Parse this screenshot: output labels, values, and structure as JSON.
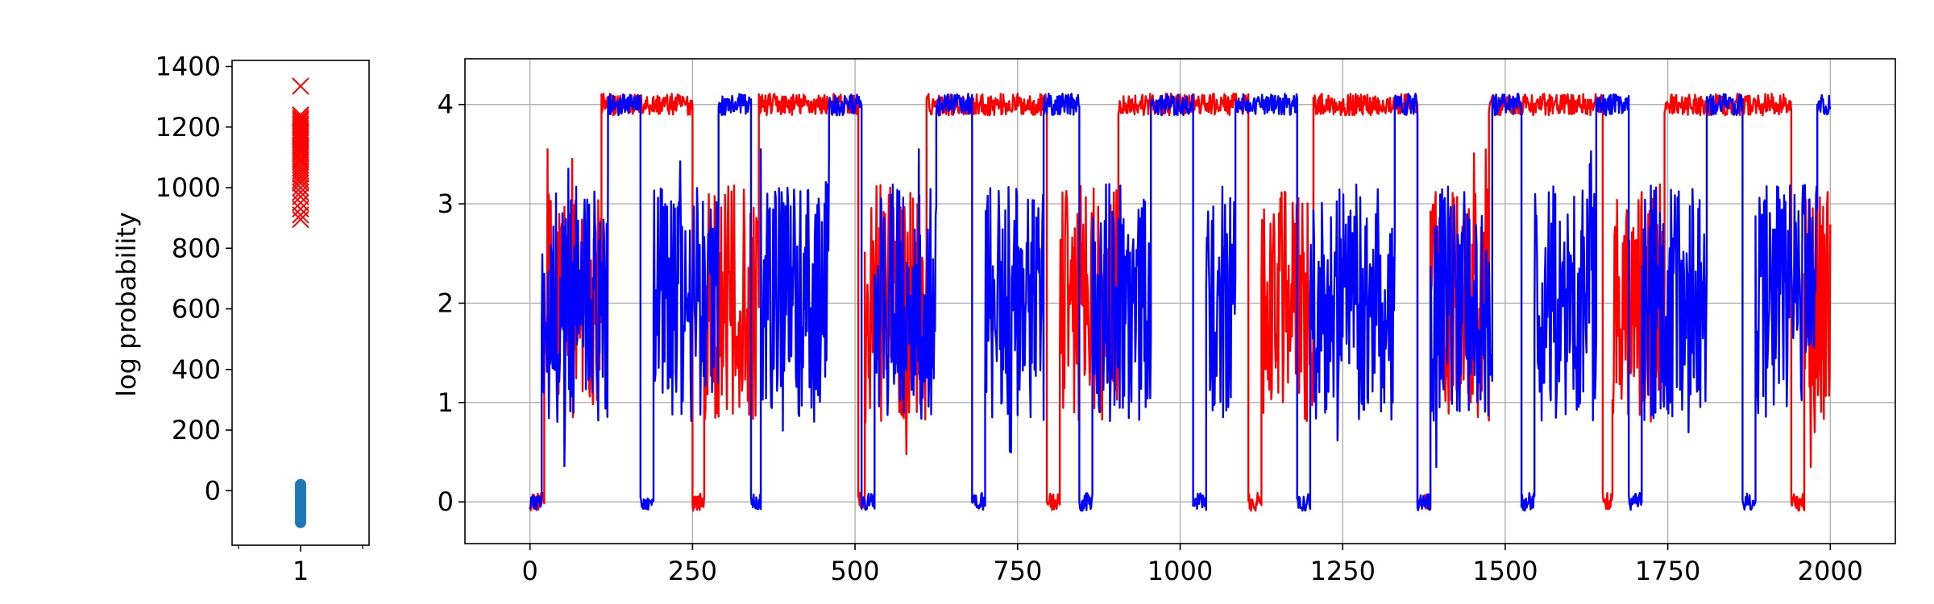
{
  "chart_data": [
    {
      "type": "scatter",
      "ylabel": "log probability",
      "xlim": [
        0.5,
        1.5
      ],
      "ylim": [
        -180,
        1420
      ],
      "x_ticks": [
        1
      ],
      "y_ticks": [
        0,
        200,
        400,
        600,
        800,
        1000,
        1200,
        1400
      ],
      "grid": false,
      "series": [
        {
          "marker": "x",
          "color": "#ff0000",
          "x": 1,
          "values": [
            1335,
            1240,
            1232,
            1225,
            1218,
            1210,
            1205,
            1198,
            1190,
            1185,
            1178,
            1170,
            1162,
            1155,
            1148,
            1140,
            1132,
            1125,
            1118,
            1110,
            1100,
            1092,
            1085,
            1075,
            1065,
            1055,
            1045,
            1035,
            1025,
            1015,
            1000,
            985,
            970,
            950,
            930,
            910,
            895
          ]
        },
        {
          "marker": "o",
          "color": "#1f77b4",
          "x": 1,
          "values": [
            20,
            10,
            0,
            -10,
            -20,
            -30,
            -40,
            -50,
            -60,
            -70,
            -80,
            -90,
            -100,
            -105
          ]
        }
      ]
    },
    {
      "type": "line",
      "xlim": [
        -100,
        2100
      ],
      "ylim": [
        -0.42,
        4.46
      ],
      "x_ticks": [
        0,
        250,
        500,
        750,
        1000,
        1250,
        1500,
        1750,
        2000
      ],
      "y_ticks": [
        0,
        1,
        2,
        3,
        4
      ],
      "grid": true,
      "series": [
        {
          "color": "#ff0000",
          "segments": [
            {
              "x": [
                0,
                22
              ],
              "level": 0.0
            },
            {
              "x": [
                22,
                110
              ],
              "level": 2.0
            },
            {
              "x": [
                110,
                250
              ],
              "level": 4.0
            },
            {
              "x": [
                250,
                268
              ],
              "level": 0.0
            },
            {
              "x": [
                268,
                352
              ],
              "level": 2.0
            },
            {
              "x": [
                352,
                505
              ],
              "level": 4.0
            },
            {
              "x": [
                505,
                515
              ],
              "level": 0.0
            },
            {
              "x": [
                515,
                610
              ],
              "level": 2.0
            },
            {
              "x": [
                610,
                795
              ],
              "level": 4.0
            },
            {
              "x": [
                795,
                815
              ],
              "level": 0.0
            },
            {
              "x": [
                815,
                905
              ],
              "level": 2.0
            },
            {
              "x": [
                905,
                1105
              ],
              "level": 4.0
            },
            {
              "x": [
                1105,
                1125
              ],
              "level": 0.0
            },
            {
              "x": [
                1125,
                1205
              ],
              "level": 2.0
            },
            {
              "x": [
                1205,
                1365
              ],
              "level": 4.0
            },
            {
              "x": [
                1365,
                1385
              ],
              "level": 0.0
            },
            {
              "x": [
                1385,
                1475
              ],
              "level": 2.0
            },
            {
              "x": [
                1475,
                1650
              ],
              "level": 4.0
            },
            {
              "x": [
                1650,
                1665
              ],
              "level": 0.0
            },
            {
              "x": [
                1665,
                1745
              ],
              "level": 2.0
            },
            {
              "x": [
                1745,
                1940
              ],
              "level": 4.0
            },
            {
              "x": [
                1940,
                1960
              ],
              "level": 0.0
            },
            {
              "x": [
                1960,
                2000
              ],
              "level": 2.0
            }
          ]
        },
        {
          "color": "#0000ff",
          "segments": [
            {
              "x": [
                0,
                18
              ],
              "level": 0.0
            },
            {
              "x": [
                18,
                120
              ],
              "level": 2.0
            },
            {
              "x": [
                120,
                170
              ],
              "level": 4.0
            },
            {
              "x": [
                170,
                190
              ],
              "level": 0.0
            },
            {
              "x": [
                190,
                290
              ],
              "level": 2.0
            },
            {
              "x": [
                290,
                340
              ],
              "level": 4.0
            },
            {
              "x": [
                340,
                355
              ],
              "level": 0.0
            },
            {
              "x": [
                355,
                460
              ],
              "level": 2.0
            },
            {
              "x": [
                460,
                510
              ],
              "level": 4.0
            },
            {
              "x": [
                510,
                530
              ],
              "level": 0.0
            },
            {
              "x": [
                530,
                625
              ],
              "level": 2.0
            },
            {
              "x": [
                625,
                680
              ],
              "level": 4.0
            },
            {
              "x": [
                680,
                700
              ],
              "level": 0.0
            },
            {
              "x": [
                700,
                790
              ],
              "level": 2.0
            },
            {
              "x": [
                790,
                845
              ],
              "level": 4.0
            },
            {
              "x": [
                845,
                865
              ],
              "level": 0.0
            },
            {
              "x": [
                865,
                955
              ],
              "level": 2.0
            },
            {
              "x": [
                955,
                1020
              ],
              "level": 4.0
            },
            {
              "x": [
                1020,
                1040
              ],
              "level": 0.0
            },
            {
              "x": [
                1040,
                1085
              ],
              "level": 2.0
            },
            {
              "x": [
                1085,
                1180
              ],
              "level": 4.0
            },
            {
              "x": [
                1180,
                1200
              ],
              "level": 0.0
            },
            {
              "x": [
                1200,
                1330
              ],
              "level": 2.0
            },
            {
              "x": [
                1330,
                1365
              ],
              "level": 4.0
            },
            {
              "x": [
                1365,
                1385
              ],
              "level": 0.0
            },
            {
              "x": [
                1385,
                1480
              ],
              "level": 2.0
            },
            {
              "x": [
                1480,
                1525
              ],
              "level": 4.0
            },
            {
              "x": [
                1525,
                1545
              ],
              "level": 0.0
            },
            {
              "x": [
                1545,
                1640
              ],
              "level": 2.0
            },
            {
              "x": [
                1640,
                1690
              ],
              "level": 4.0
            },
            {
              "x": [
                1690,
                1710
              ],
              "level": 0.0
            },
            {
              "x": [
                1710,
                1810
              ],
              "level": 2.0
            },
            {
              "x": [
                1810,
                1865
              ],
              "level": 4.0
            },
            {
              "x": [
                1865,
                1885
              ],
              "level": 0.0
            },
            {
              "x": [
                1885,
                1980
              ],
              "level": 2.0
            },
            {
              "x": [
                1980,
                2000
              ],
              "level": 4.0
            }
          ]
        }
      ]
    }
  ]
}
